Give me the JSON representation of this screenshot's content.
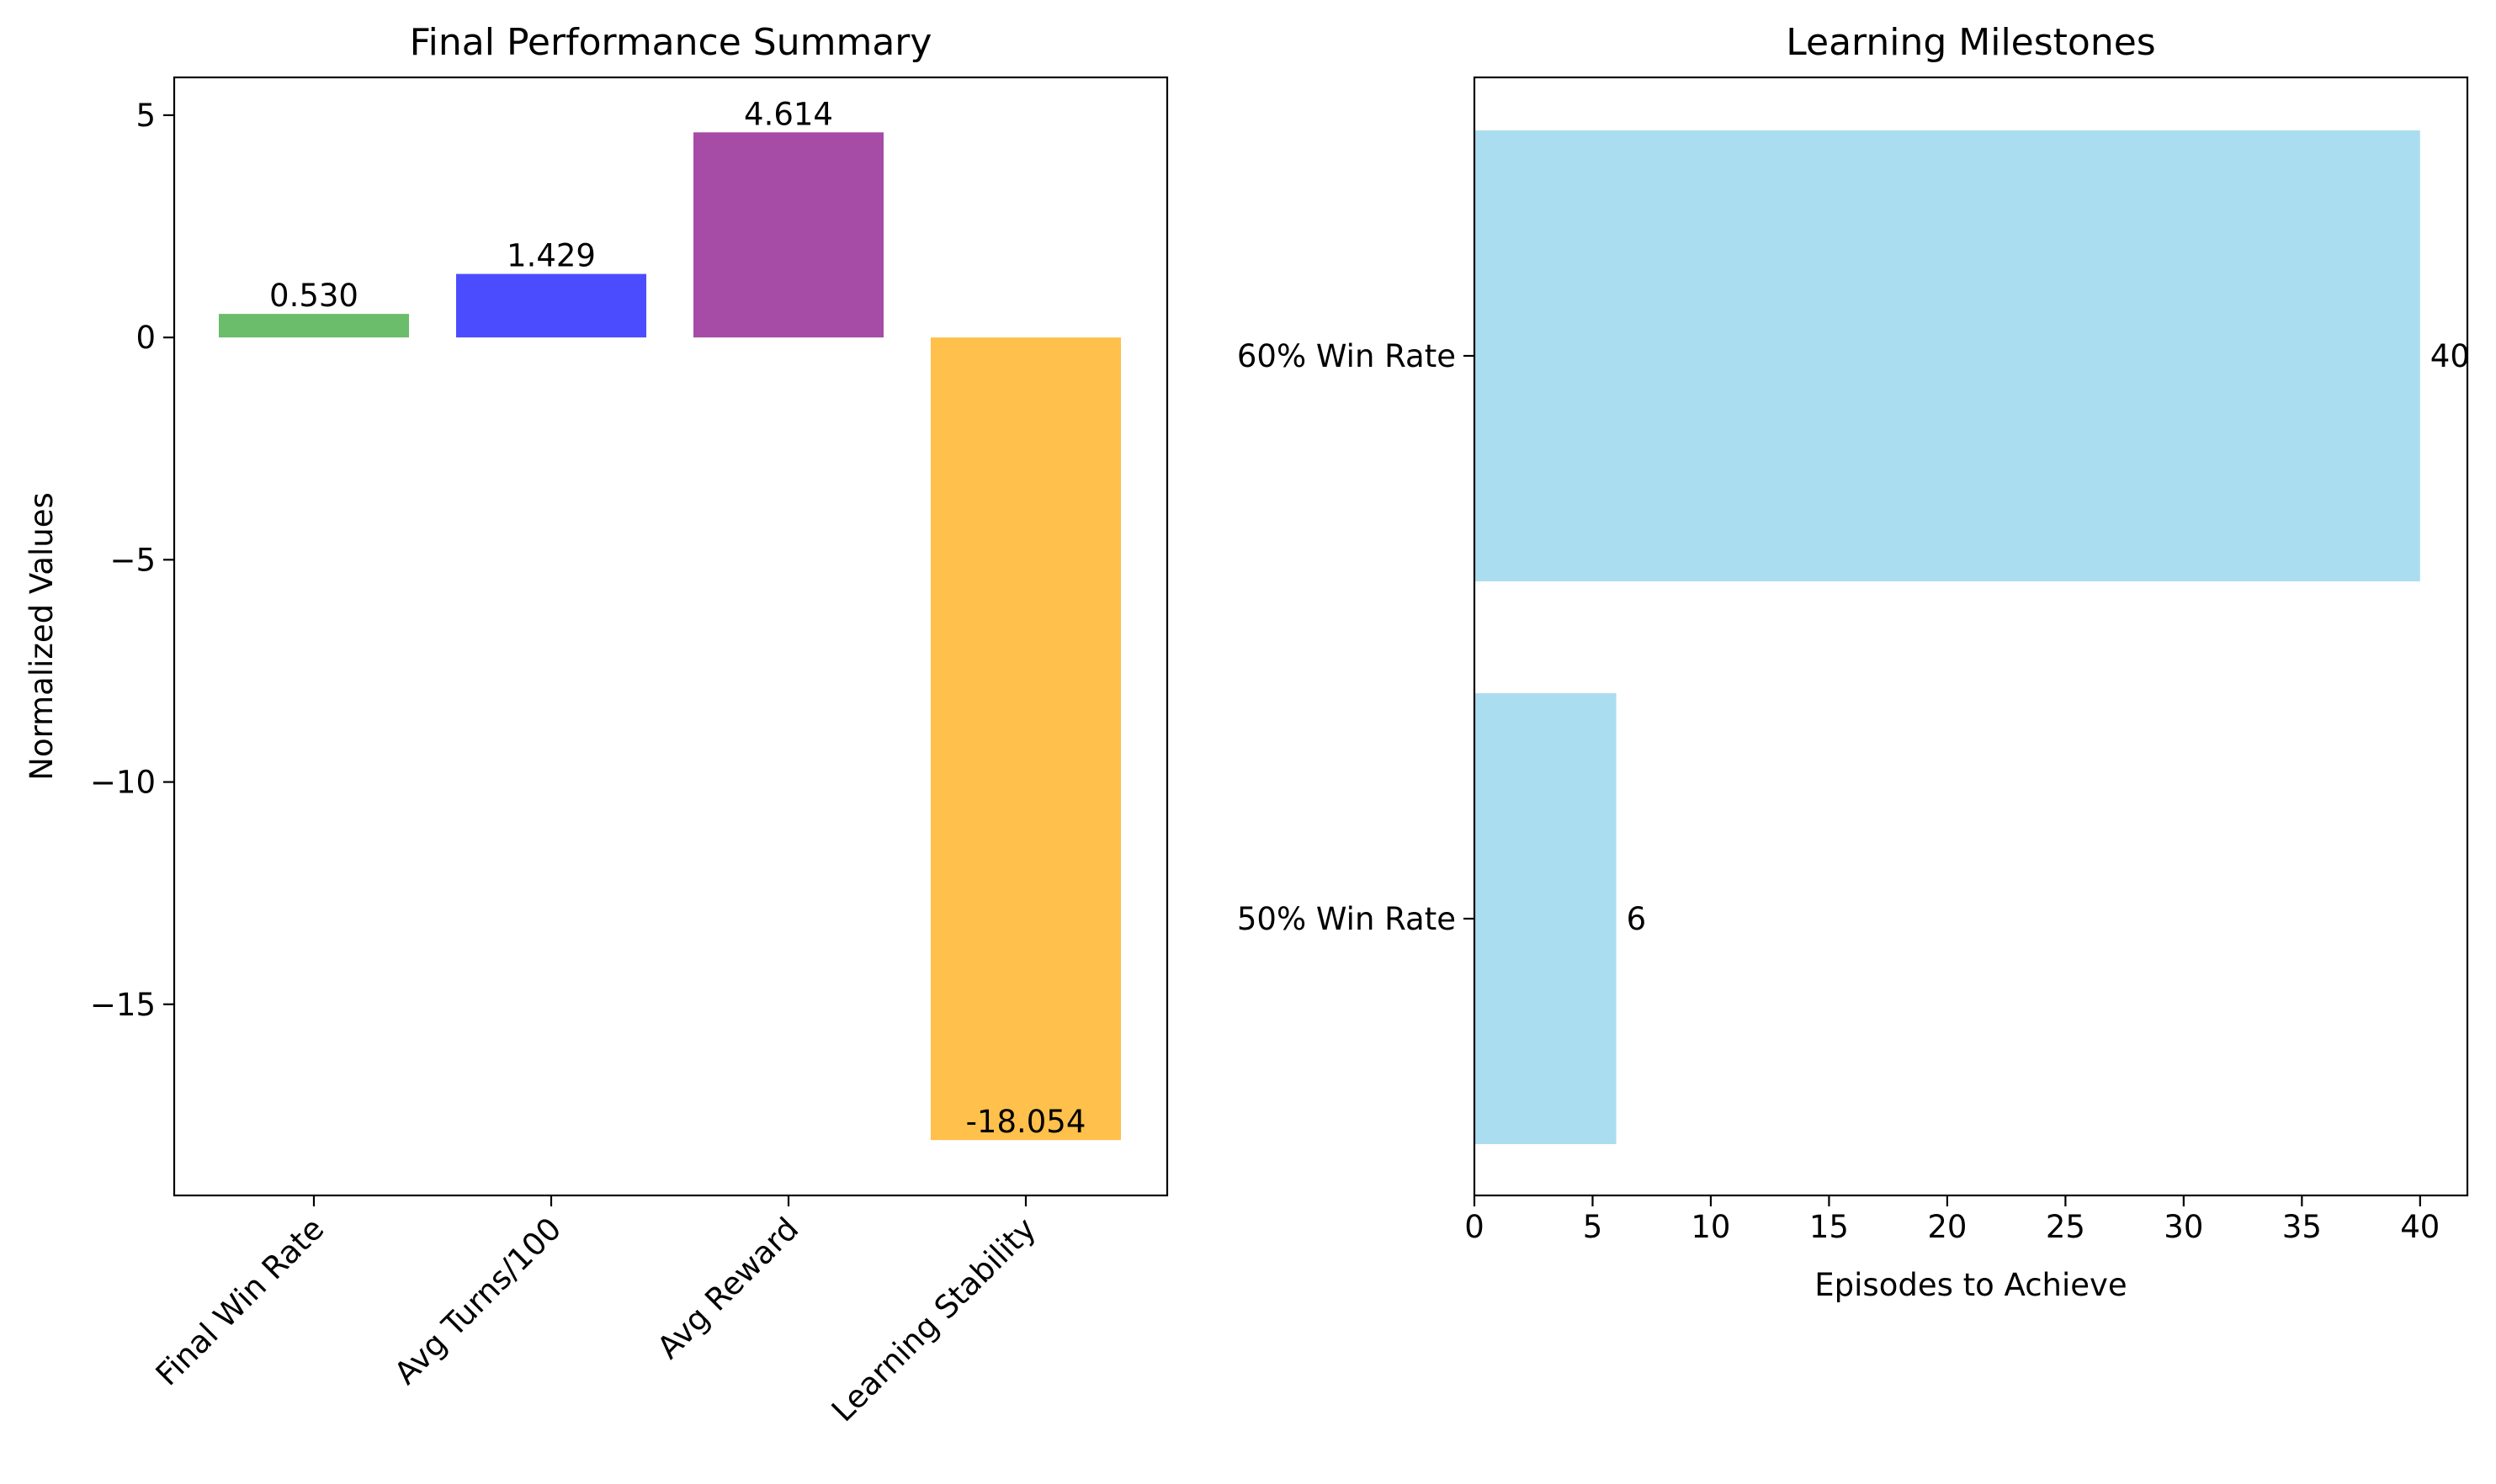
{
  "chart_data": [
    {
      "type": "bar",
      "orientation": "vertical",
      "title": "Final Performance Summary",
      "xlabel": "",
      "ylabel": "Normalized Values",
      "categories": [
        "Final Win Rate",
        "Avg Turns/100",
        "Avg Reward",
        "Learning Stability"
      ],
      "values": [
        0.53,
        1.429,
        4.614,
        -18.054
      ],
      "data_labels": [
        "0.530",
        "1.429",
        "4.614",
        "-18.054"
      ],
      "colors": [
        "#2ca02c",
        "#0000ff",
        "#800080",
        "#ffa500"
      ],
      "bar_opacity": 0.7,
      "ylim": [
        -19.3,
        5.85
      ],
      "yticks": [
        5,
        0,
        -5,
        -10,
        -15
      ],
      "ytick_labels": [
        "5",
        "0",
        "−5",
        "−10",
        "−15"
      ],
      "grid": false
    },
    {
      "type": "bar",
      "orientation": "horizontal",
      "title": "Learning Milestones",
      "xlabel": "Episodes to Achieve",
      "ylabel": "",
      "categories": [
        "50% Win Rate",
        "60% Win Rate"
      ],
      "values": [
        6,
        40
      ],
      "data_labels": [
        "6",
        "40"
      ],
      "color": "#87ceeb",
      "bar_opacity": 0.7,
      "xlim": [
        0,
        42
      ],
      "xticks": [
        0,
        5,
        10,
        15,
        20,
        25,
        30,
        35,
        40
      ],
      "xtick_labels": [
        "0",
        "5",
        "10",
        "15",
        "20",
        "25",
        "30",
        "35",
        "40"
      ],
      "grid": false
    }
  ]
}
